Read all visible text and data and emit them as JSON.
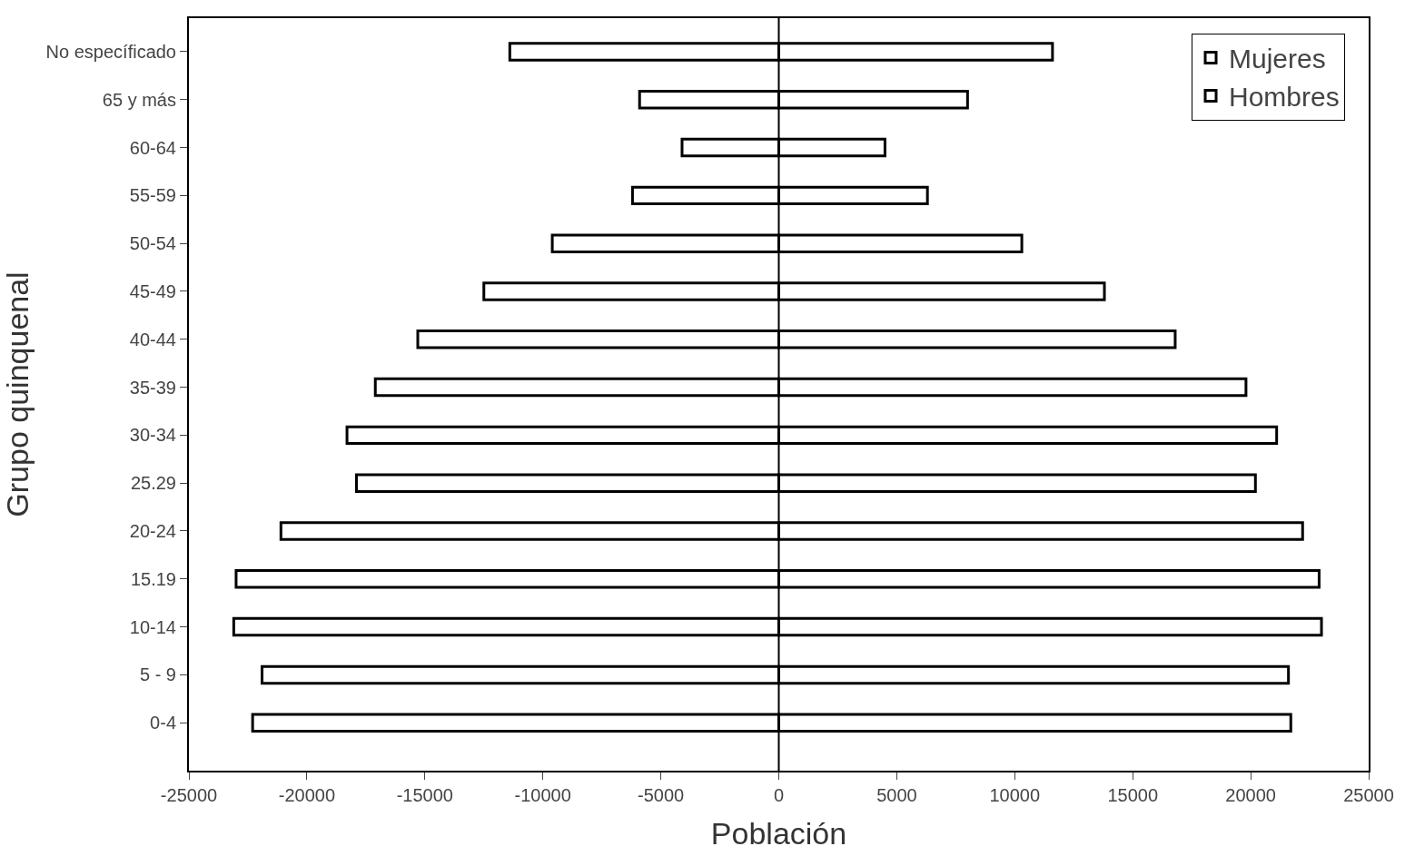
{
  "chart_data": {
    "type": "bar",
    "orientation": "horizontal",
    "stacked": true,
    "xlabel": "Población",
    "ylabel": "Grupo quinquenal",
    "categories": [
      "No específicado",
      "65 y más",
      "60-64",
      "55-59",
      "50-54",
      "45-49",
      "40-44",
      "35-39",
      "30-34",
      "25.29",
      "20-24",
      "15.19",
      "10-14",
      "5 - 9",
      "0-4"
    ],
    "series": [
      {
        "name": "Mujeres",
        "color": "#ffffff",
        "values": [
          11600,
          8000,
          4500,
          6300,
          10300,
          13800,
          16800,
          19800,
          21100,
          20200,
          22200,
          22900,
          23000,
          21600,
          21700
        ]
      },
      {
        "name": "Hombres",
        "color": "#ffffff",
        "values": [
          -11400,
          -5900,
          -4100,
          -6200,
          -9600,
          -12500,
          -15300,
          -17100,
          -18300,
          -17900,
          -21100,
          -23000,
          -23100,
          -21900,
          -22300
        ]
      }
    ],
    "xlim": [
      -25000,
      25000
    ],
    "xticks": [
      -25000,
      -20000,
      -15000,
      -10000,
      -5000,
      0,
      5000,
      10000,
      15000,
      20000,
      25000
    ],
    "ref_lines": [
      {
        "axis": "x",
        "value": 0,
        "color": "#000000"
      }
    ],
    "grid": false,
    "legend": "top right"
  }
}
